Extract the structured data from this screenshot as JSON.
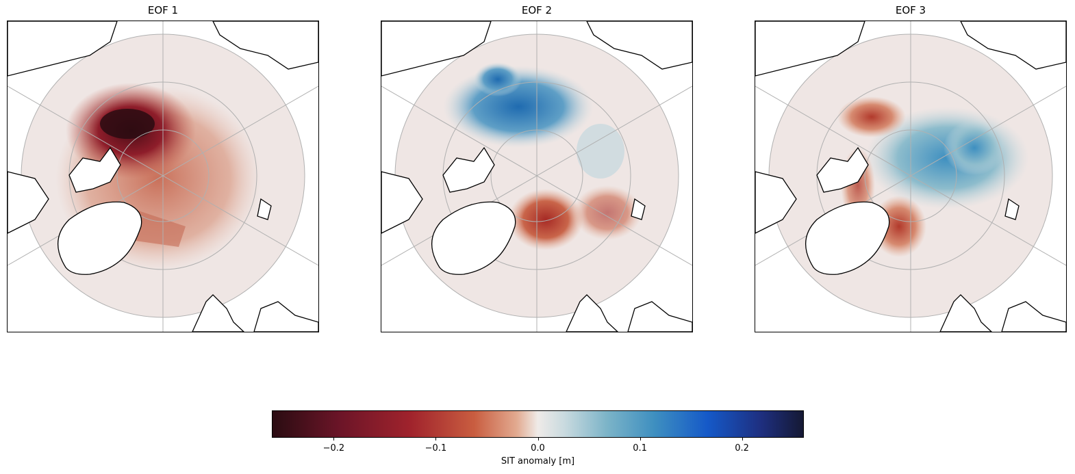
{
  "figure": {
    "panels": [
      {
        "title": "EOF 1"
      },
      {
        "title": "EOF 2"
      },
      {
        "title": "EOF 3"
      }
    ]
  },
  "colorbar": {
    "label": "SIT anomaly [m]",
    "ticks": [
      {
        "value": -0.2,
        "text": "−0.2"
      },
      {
        "value": -0.1,
        "text": "−0.1"
      },
      {
        "value": 0.0,
        "text": "0.0"
      },
      {
        "value": 0.1,
        "text": "0.1"
      },
      {
        "value": 0.2,
        "text": "0.2"
      }
    ],
    "range": [
      -0.26,
      0.26
    ],
    "colormap_stops": [
      "#2a0c12",
      "#a0232c",
      "#efebe8",
      "#3e8fc0",
      "#151934"
    ]
  },
  "colors": {
    "neutral": "#efe6e4",
    "land_outline": "#000000",
    "gridline": "#b0b0b0"
  }
}
